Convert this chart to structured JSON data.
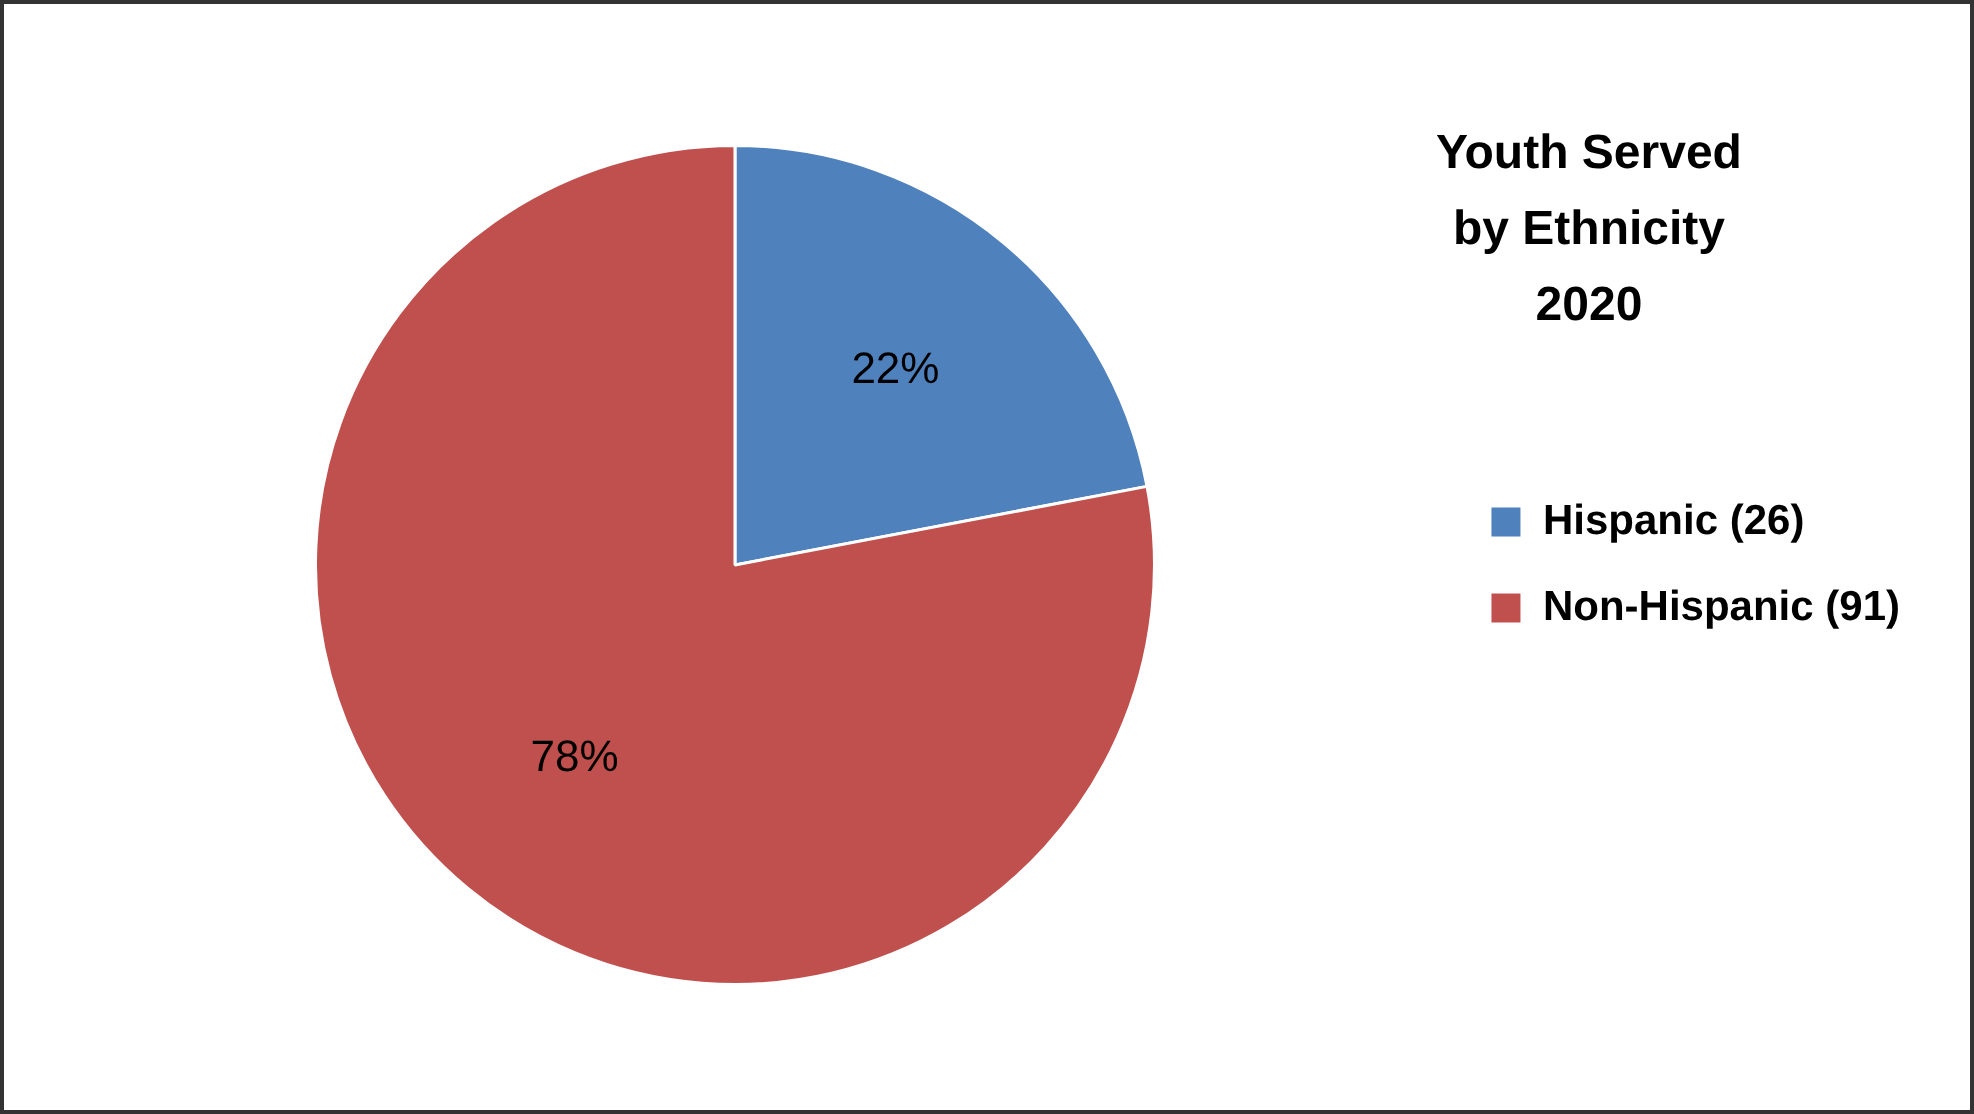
{
  "chart_data": {
    "type": "pie",
    "title": "Youth Served\nby Ethnicity\n2020",
    "categories": [
      "Hispanic (26)",
      "Non-Hispanic (91)"
    ],
    "values": [
      22,
      78
    ],
    "colors": [
      "#4f81bd",
      "#c0504d"
    ],
    "value_labels": [
      "22%",
      "78%"
    ],
    "legend": "right"
  }
}
